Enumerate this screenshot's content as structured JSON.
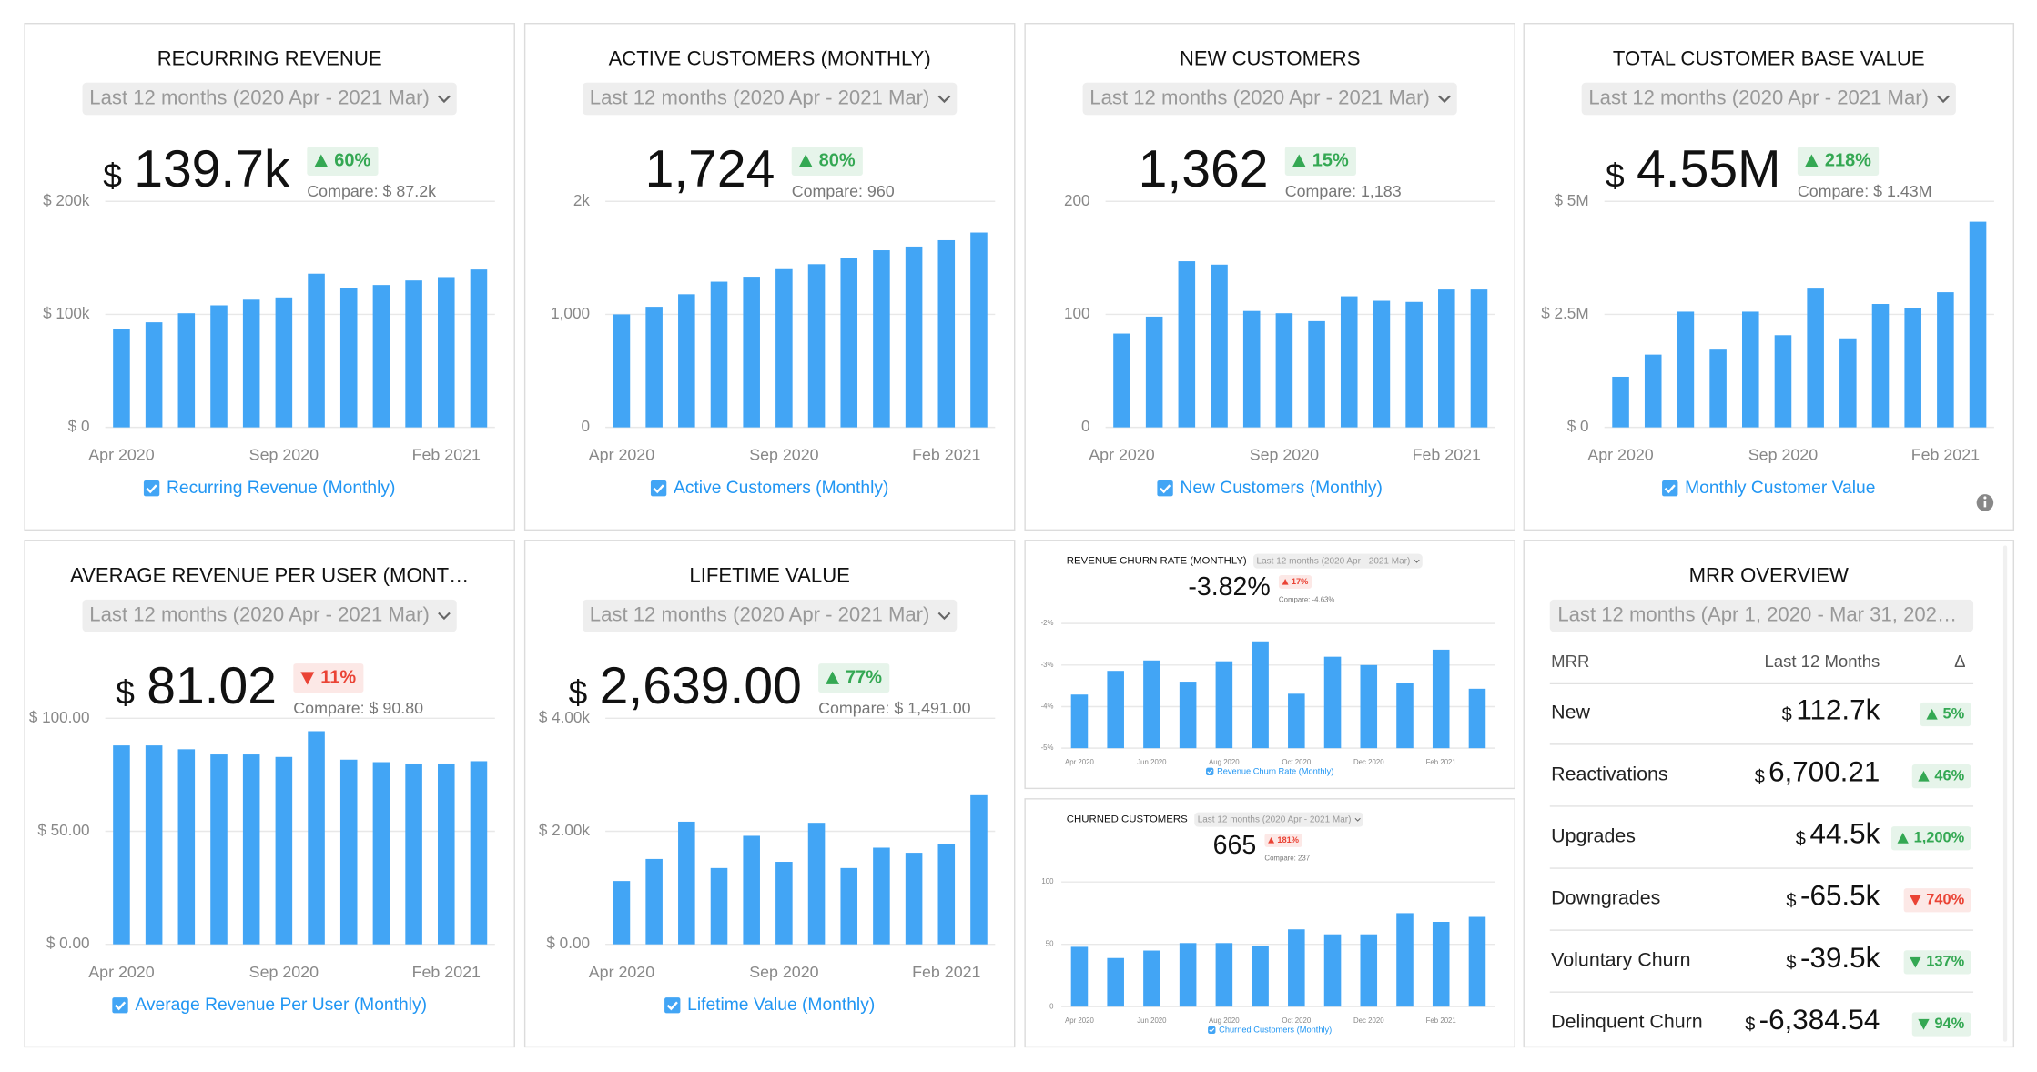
{
  "chart_data": [
    {
      "type": "bar",
      "title": "RECURRING REVENUE",
      "period": "Last 12 months (2020 Apr - 2021 Mar)",
      "prefix": "$",
      "kpi": "139.7k",
      "change": "60%",
      "trend": "up",
      "status": "good",
      "compare": "Compare: $ 87.2k",
      "categories": [
        "Apr 2020",
        null,
        null,
        null,
        null,
        "Sep 2020",
        null,
        null,
        null,
        null,
        "Feb 2021",
        null
      ],
      "series": [
        {
          "name": "Recurring Revenue (Monthly)",
          "color": "#42a5f5",
          "values": [
            87000,
            93000,
            101000,
            108000,
            113000,
            115000,
            136000,
            123000,
            126000,
            130000,
            133000,
            139700
          ]
        }
      ],
      "ylim": [
        0,
        200000
      ],
      "yticks": [
        {
          "value": 0,
          "label": "$ 0"
        },
        {
          "value": 100000,
          "label": "$ 100k"
        },
        {
          "value": 200000,
          "label": "$ 200k"
        }
      ]
    },
    {
      "type": "bar",
      "title": "ACTIVE CUSTOMERS (MONTHLY)",
      "period": "Last 12 months (2020 Apr - 2021 Mar)",
      "kpi": "1,724",
      "change": "80%",
      "trend": "up",
      "status": "good",
      "compare": "Compare: 960",
      "categories": [
        "Apr 2020",
        null,
        null,
        null,
        null,
        "Sep 2020",
        null,
        null,
        null,
        null,
        "Feb 2021",
        null
      ],
      "series": [
        {
          "name": "Active Customers (Monthly)",
          "color": "#42a5f5",
          "values": [
            1000,
            1067,
            1178,
            1289,
            1333,
            1400,
            1444,
            1500,
            1567,
            1600,
            1656,
            1724
          ]
        }
      ],
      "ylim": [
        0,
        2000
      ],
      "yticks": [
        0,
        {
          "value": 1000,
          "label": "1,000"
        },
        {
          "value": 2000,
          "label": "2k"
        }
      ]
    },
    {
      "type": "bar",
      "title": "NEW CUSTOMERS",
      "period": "Last 12 months (2020 Apr - 2021 Mar)",
      "kpi": "1,362",
      "change": "15%",
      "trend": "up",
      "status": "good",
      "compare": "Compare: 1,183",
      "categories": [
        "Apr 2020",
        null,
        null,
        null,
        null,
        "Sep 2020",
        null,
        null,
        null,
        null,
        "Feb 2021",
        null
      ],
      "series": [
        {
          "name": "New Customers (Monthly)",
          "color": "#42a5f5",
          "values": [
            83,
            98,
            147,
            144,
            103,
            101,
            94,
            116,
            112,
            111,
            122,
            122
          ]
        }
      ],
      "ylim": [
        0,
        200
      ],
      "yticks": [
        0,
        100,
        200
      ]
    },
    {
      "type": "bar",
      "title": "TOTAL CUSTOMER BASE VALUE",
      "period": "Last 12 months (2020 Apr - 2021 Mar)",
      "prefix": "$",
      "kpi": "4.55M",
      "change": "218%",
      "trend": "up",
      "status": "good",
      "compare": "Compare: $ 1.43M",
      "categories": [
        "Apr 2020",
        null,
        null,
        null,
        null,
        "Sep 2020",
        null,
        null,
        null,
        null,
        "Feb 2021",
        null
      ],
      "series": [
        {
          "name": "Monthly Customer Value",
          "color": "#42a5f5",
          "values": [
            1120000,
            1610000,
            2560000,
            1720000,
            2560000,
            2040000,
            3070000,
            1970000,
            2730000,
            2640000,
            2990000,
            4550000
          ]
        }
      ],
      "ylim": [
        0,
        5000000
      ],
      "yticks": [
        {
          "value": 0,
          "label": "$ 0"
        },
        {
          "value": 2500000,
          "label": "$ 2.5M"
        },
        {
          "value": 5000000,
          "label": "$ 5M"
        }
      ]
    },
    {
      "type": "bar",
      "title": "AVERAGE REVENUE PER USER (MONT…",
      "period": "Last 12 months (2020 Apr - 2021 Mar)",
      "prefix": "$",
      "kpi": "81.02",
      "change": "11%",
      "trend": "down",
      "status": "bad",
      "compare": "Compare: $ 90.80",
      "categories": [
        "Apr 2020",
        null,
        null,
        null,
        null,
        "Sep 2020",
        null,
        null,
        null,
        null,
        "Feb 2021",
        null
      ],
      "series": [
        {
          "name": "Average Revenue Per User (Monthly)",
          "color": "#42a5f5",
          "values": [
            88,
            88,
            86.3,
            84,
            84,
            82.9,
            94.3,
            81.7,
            80.6,
            80,
            80,
            81.02
          ]
        }
      ],
      "ylim": [
        0,
        100
      ],
      "yticks": [
        {
          "value": 0,
          "label": "$ 0.00"
        },
        {
          "value": 50,
          "label": "$ 50.00"
        },
        {
          "value": 100,
          "label": "$ 100.00"
        }
      ]
    },
    {
      "type": "bar",
      "title": "LIFETIME VALUE",
      "period": "Last 12 months (2020 Apr - 2021 Mar)",
      "prefix": "$",
      "kpi": "2,639.00",
      "change": "77%",
      "trend": "up",
      "status": "good",
      "compare": "Compare: $ 1,491.00",
      "categories": [
        "Apr 2020",
        null,
        null,
        null,
        null,
        "Sep 2020",
        null,
        null,
        null,
        null,
        "Feb 2021",
        null
      ],
      "series": [
        {
          "name": "Lifetime Value (Monthly)",
          "color": "#42a5f5",
          "values": [
            1120,
            1510,
            2170,
            1350,
            1920,
            1460,
            2150,
            1350,
            1710,
            1620,
            1780,
            2639
          ]
        }
      ],
      "ylim": [
        0,
        4000
      ],
      "yticks": [
        {
          "value": 0,
          "label": "$ 0.00"
        },
        {
          "value": 2000,
          "label": "$ 2.00k"
        },
        {
          "value": 4000,
          "label": "$ 4.00k"
        }
      ]
    },
    {
      "type": "bar",
      "title": "REVENUE CHURN RATE (MONTHLY)",
      "period": "Last 12 months (2020 Apr - 2021 Mar)",
      "kpi": "-3.82%",
      "change": "17%",
      "trend": "up",
      "status": "bad",
      "compare": "Compare: -4.63%",
      "categories": [
        "Apr 2020",
        null,
        "Jun 2020",
        null,
        "Aug 2020",
        null,
        "Oct 2020",
        null,
        "Dec 2020",
        null,
        "Feb 2021",
        null
      ],
      "series": [
        {
          "name": "Revenue Churn Rate (Monthly)",
          "color": "#42a5f5",
          "values": [
            -3.71,
            -3.14,
            -2.89,
            -3.4,
            -2.91,
            -2.43,
            -3.69,
            -2.8,
            -3.0,
            -3.43,
            -2.63,
            -3.57
          ]
        }
      ],
      "ylim": [
        -5,
        -2
      ],
      "yticks": [
        {
          "value": -2,
          "label": "-2%"
        },
        {
          "value": -3,
          "label": "-3%"
        },
        {
          "value": -4,
          "label": "-4%"
        },
        {
          "value": -5,
          "label": "-5%"
        }
      ]
    },
    {
      "type": "bar",
      "title": "CHURNED CUSTOMERS",
      "period": "Last 12 months (2020 Apr - 2021 Mar)",
      "kpi": "665",
      "change": "181%",
      "trend": "up",
      "status": "bad",
      "compare": "Compare: 237",
      "categories": [
        "Apr 2020",
        null,
        "Jun 2020",
        null,
        "Aug 2020",
        null,
        "Oct 2020",
        null,
        "Dec 2020",
        null,
        "Feb 2021",
        null
      ],
      "series": [
        {
          "name": "Churned Customers (Monthly)",
          "color": "#42a5f5",
          "values": [
            48,
            39,
            45,
            51,
            51,
            49,
            62,
            58,
            58,
            75,
            68,
            72
          ]
        }
      ],
      "ylim": [
        0,
        100
      ],
      "yticks": [
        0,
        50,
        100
      ]
    }
  ],
  "table": {
    "title": "MRR OVERVIEW",
    "period": "Last 12 months (Apr 1, 2020 - Mar 31, 202…",
    "header": [
      "MRR",
      "Last 12 Months",
      "Δ"
    ],
    "rows": [
      {
        "label": "New",
        "prefix": "$",
        "value": "112.7k",
        "change": "5%",
        "trend": "up",
        "status": "good"
      },
      {
        "label": "Reactivations",
        "prefix": "$",
        "value": "6,700.21",
        "change": "46%",
        "trend": "up",
        "status": "good"
      },
      {
        "label": "Upgrades",
        "prefix": "$",
        "value": "44.5k",
        "change": "1,200%",
        "trend": "up",
        "status": "good"
      },
      {
        "label": "Downgrades",
        "prefix": "$",
        "value": "-65.5k",
        "change": "740%",
        "trend": "down",
        "status": "bad"
      },
      {
        "label": "Voluntary Churn",
        "prefix": "$",
        "value": "-39.5k",
        "change": "137%",
        "trend": "down",
        "status": "good"
      },
      {
        "label": "Delinquent Churn",
        "prefix": "$",
        "value": "-6,384.54",
        "change": "94%",
        "trend": "down",
        "status": "good"
      }
    ]
  }
}
